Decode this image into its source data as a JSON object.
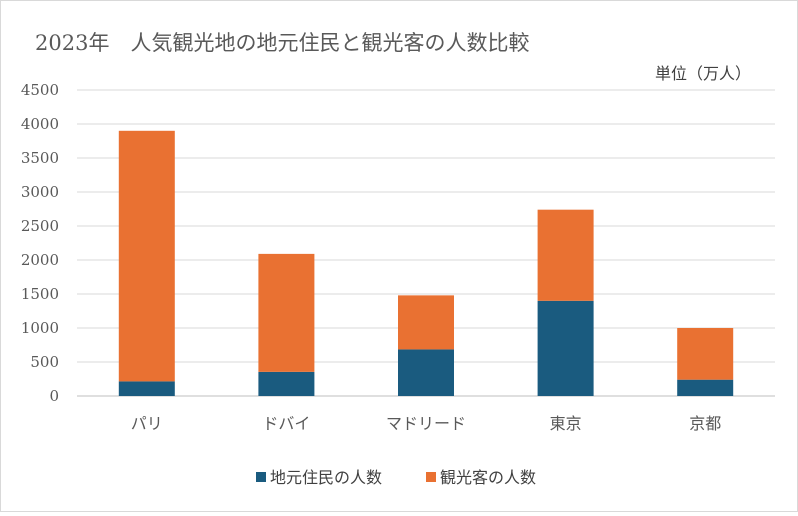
{
  "chart_data": {
    "type": "bar",
    "stacked": true,
    "title": "2023年　人気観光地の地元住民と観光客の人数比較",
    "unit_label": "単位（万人）",
    "categories": [
      "パリ",
      "ドバイ",
      "マドリード",
      "東京",
      "京都"
    ],
    "series": [
      {
        "name": "地元住民の人数",
        "color": "#1a5b7f",
        "values": [
          215,
          355,
          685,
          1400,
          240
        ]
      },
      {
        "name": "観光客の人数",
        "color": "#e97132",
        "values": [
          3685,
          1735,
          795,
          1340,
          760
        ]
      }
    ],
    "ylim": [
      0,
      4500
    ],
    "yticks": [
      0,
      500,
      1000,
      1500,
      2000,
      2500,
      3000,
      3500,
      4000,
      4500
    ],
    "grid": true,
    "legend_position": "bottom"
  }
}
